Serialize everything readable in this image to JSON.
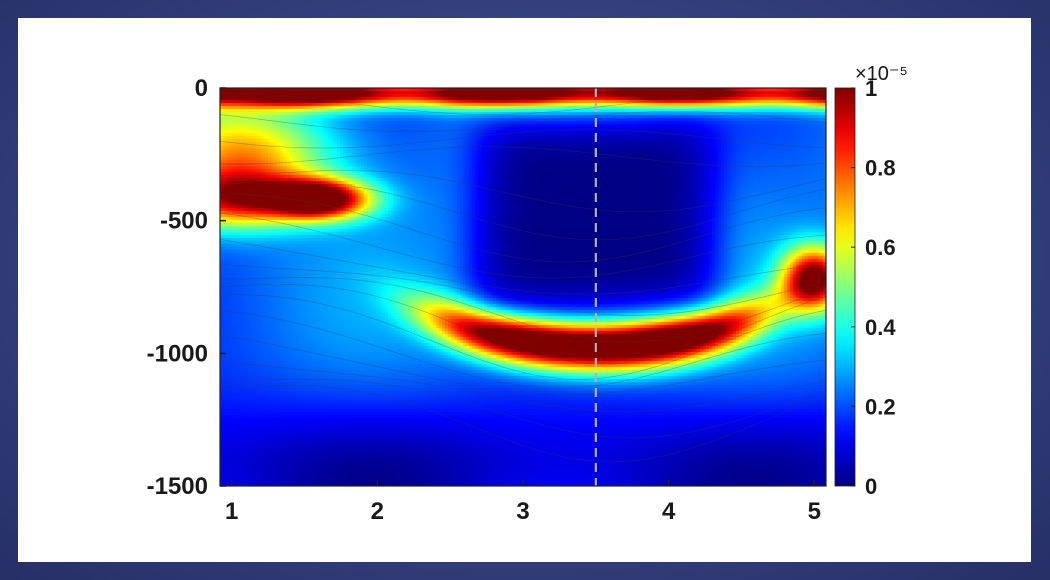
{
  "chart_data": {
    "type": "heatmap",
    "title": "",
    "xlabel": "",
    "ylabel": "",
    "xlim": [
      0.92,
      5.08
    ],
    "ylim": [
      -1500,
      0
    ],
    "x_ticks": [
      1,
      2,
      3,
      4,
      5
    ],
    "x_tick_labels": [
      "1",
      "2",
      "3",
      "4",
      "5"
    ],
    "y_ticks": [
      0,
      -500,
      -1000,
      -1500
    ],
    "y_tick_labels": [
      "0",
      "-500",
      "-1000",
      "-1500"
    ],
    "colorbar": {
      "colormap": "jet",
      "range": [
        0,
        1
      ],
      "ticks": [
        0,
        0.2,
        0.4,
        0.6,
        0.8,
        1
      ],
      "tick_labels": [
        "0",
        "0.2",
        "0.4",
        "0.6",
        "0.8",
        "1"
      ],
      "multiplier_label": "×10⁻⁵"
    },
    "reference_line": {
      "x": 3.5,
      "style": "dashed",
      "color": "#b0b0b0"
    },
    "features": [
      {
        "x_center": 3.5,
        "depth_center": -975,
        "half_width": 1.15,
        "depth_half_extent": 110,
        "peak": 1.0,
        "description_shape": "curved band"
      },
      {
        "x_center": 1.6,
        "depth_center": -420,
        "half_width": 0.35,
        "depth_half_extent": 75,
        "peak": 0.9
      },
      {
        "x_center": 3.5,
        "depth_center": -30,
        "half_width": 2.2,
        "depth_half_extent": 40,
        "peak": 1.0
      },
      {
        "x_center": 3.4,
        "depth_center": -450,
        "half_width": 0.85,
        "depth_half_extent": 390,
        "peak": 0.0
      }
    ],
    "colors": {
      "jet_stops": [
        "#00007f",
        "#0000ff",
        "#007fff",
        "#00ffff",
        "#7fff7f",
        "#ffff00",
        "#ff7f00",
        "#ff0000",
        "#7f0000"
      ],
      "background_frame": "#34417f",
      "panel": "#ffffff"
    }
  }
}
